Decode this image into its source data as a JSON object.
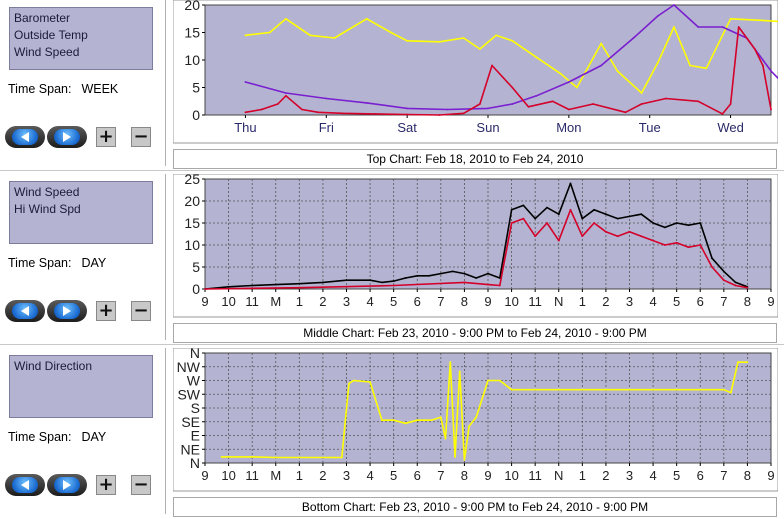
{
  "panels": [
    {
      "series": [
        "Barometer",
        "Outside Temp",
        "Wind Speed"
      ],
      "time_span_label": "Time Span:",
      "time_span_value": "WEEK",
      "buttons": {
        "back": "back",
        "forward": "forward",
        "plus": "+",
        "minus": "−"
      }
    },
    {
      "series": [
        "Wind Speed",
        "Hi Wind Spd"
      ],
      "time_span_label": "Time Span:",
      "time_span_value": "DAY",
      "buttons": {
        "back": "back",
        "forward": "forward",
        "plus": "+",
        "minus": "−"
      }
    },
    {
      "series": [
        "Wind Direction"
      ],
      "time_span_label": "Time Span:",
      "time_span_value": "DAY",
      "buttons": {
        "back": "back",
        "forward": "forward",
        "plus": "+",
        "minus": "−"
      }
    }
  ],
  "captions": {
    "top": "Top Chart:  Feb 18, 2010  to  Feb 24, 2010",
    "middle": "Middle Chart:  Feb 23, 2010 - 9:00 PM  to  Feb 24, 2010 - 9:00 PM",
    "bottom": "Bottom Chart:  Feb 23, 2010 - 9:00 PM  to  Feb 24, 2010 - 9:00 PM"
  },
  "icons": {
    "back": "left-arrow-icon",
    "forward": "right-arrow-icon"
  },
  "colors": {
    "plot_bg": "#b4b4d2",
    "yellow": "#ffff00",
    "purple": "#7a1fd0",
    "red": "#d4002a",
    "black": "#000000"
  },
  "chart_data": [
    {
      "type": "line",
      "y_ticks": [
        "0",
        "5",
        "10",
        "15",
        "20"
      ],
      "ylim": [
        0,
        20
      ],
      "categories": [
        "Thu",
        "Fri",
        "Sat",
        "Sun",
        "Mon",
        "Tue",
        "Wed"
      ],
      "grid": false,
      "series": [
        {
          "color": "#ffff00",
          "x": [
            0,
            0.3,
            0.5,
            0.8,
            1.1,
            1.5,
            1.8,
            2.0,
            2.4,
            2.7,
            2.9,
            3.1,
            3.3,
            3.6,
            3.9,
            4.1,
            4.4,
            4.6,
            4.9,
            5.1,
            5.3,
            5.5,
            5.7,
            6.0,
            6.4,
            6.6
          ],
          "values": [
            14.5,
            15,
            17.5,
            14.5,
            14,
            17.5,
            15,
            13.5,
            13.3,
            14,
            12,
            14.5,
            13.5,
            10.5,
            7.5,
            5,
            13,
            8,
            4,
            9.5,
            16,
            9,
            8.5,
            17.5,
            17.2,
            17
          ]
        },
        {
          "color": "#7a1fd0",
          "x": [
            0,
            0.5,
            1.0,
            1.5,
            2.0,
            2.5,
            3.0,
            3.3,
            3.6,
            4.0,
            4.4,
            4.8,
            5.1,
            5.3,
            5.6,
            5.9,
            6.2,
            6.5,
            6.6
          ],
          "values": [
            6,
            4,
            3,
            2.2,
            1.2,
            1,
            1.2,
            2,
            3.5,
            6,
            9,
            14,
            18,
            20,
            16,
            16,
            14,
            8,
            6.5
          ]
        },
        {
          "color": "#d4002a",
          "x": [
            0,
            0.2,
            0.4,
            0.5,
            0.7,
            0.9,
            1.2,
            1.6,
            2.0,
            2.4,
            2.7,
            2.9,
            3.05,
            3.3,
            3.5,
            3.8,
            4.0,
            4.3,
            4.7,
            4.9,
            5.2,
            5.6,
            5.9,
            6.0,
            6.1,
            6.3,
            6.4,
            6.5
          ],
          "values": [
            0.5,
            1,
            2,
            3.5,
            1,
            0.5,
            0.3,
            0.2,
            0.1,
            0,
            0.3,
            2,
            9,
            5,
            1.5,
            2.5,
            1,
            2,
            0.5,
            2,
            3,
            2.5,
            0.2,
            2,
            16,
            12,
            9,
            1
          ]
        }
      ]
    },
    {
      "type": "line",
      "y_ticks": [
        "0",
        "5",
        "10",
        "15",
        "20",
        "25"
      ],
      "ylim": [
        0,
        25
      ],
      "categories": [
        "9",
        "10",
        "11",
        "M",
        "1",
        "2",
        "3",
        "4",
        "5",
        "6",
        "7",
        "8",
        "9",
        "10",
        "11",
        "N",
        "1",
        "2",
        "3",
        "4",
        "5",
        "6",
        "7",
        "8",
        "9"
      ],
      "grid": true,
      "series": [
        {
          "color": "#000000",
          "x": [
            0,
            1,
            2,
            3,
            4,
            5,
            6,
            7,
            7.5,
            8,
            8.5,
            9,
            9.5,
            10,
            10.5,
            11,
            11.5,
            12,
            12.5,
            13,
            13.5,
            14,
            14.5,
            15,
            15.5,
            16,
            16.5,
            17,
            17.5,
            18,
            18.5,
            19,
            19.5,
            20,
            20.5,
            21,
            21.5,
            22,
            22.5,
            23
          ],
          "values": [
            0,
            0.5,
            0.8,
            1,
            1.2,
            1.5,
            2,
            2,
            1.5,
            1.8,
            2.5,
            3,
            3,
            3.5,
            4,
            3.5,
            2.5,
            3.5,
            2.5,
            18,
            19,
            16,
            18.5,
            17,
            24,
            16,
            18,
            17,
            16,
            16.5,
            17,
            15,
            14,
            15,
            14.5,
            15,
            7,
            4,
            1.5,
            0.5
          ]
        },
        {
          "color": "#d4002a",
          "x": [
            0,
            4,
            8,
            11,
            12,
            12.5,
            13,
            13.5,
            14,
            14.5,
            15,
            15.5,
            16,
            16.5,
            17,
            17.5,
            18,
            18.5,
            19,
            19.5,
            20,
            20.5,
            21,
            21.5,
            22,
            22.5,
            23
          ],
          "values": [
            0,
            0.3,
            0.8,
            1.5,
            1,
            0.8,
            15,
            16,
            12,
            15,
            11,
            18,
            12,
            15,
            13,
            12,
            13,
            12,
            11,
            10,
            10.5,
            9.5,
            10,
            5,
            2,
            0.8,
            0.3
          ]
        }
      ]
    },
    {
      "type": "line",
      "y_ticks": [
        "N",
        "NE",
        "E",
        "SE",
        "S",
        "SW",
        "W",
        "NW",
        "N"
      ],
      "ylim": [
        0,
        360
      ],
      "categories": [
        "9",
        "10",
        "11",
        "M",
        "1",
        "2",
        "3",
        "4",
        "5",
        "6",
        "7",
        "8",
        "9",
        "10",
        "11",
        "N",
        "1",
        "2",
        "3",
        "4",
        "5",
        "6",
        "7",
        "8",
        "9"
      ],
      "grid": true,
      "series": [
        {
          "color": "#ffff00",
          "x": [
            0.7,
            2,
            3,
            4,
            5.3,
            5.5,
            5.8,
            6.1,
            6.3,
            7,
            7.5,
            8,
            8.5,
            9,
            9.3,
            9.6,
            10,
            10.2,
            10.4,
            10.6,
            10.8,
            11,
            11.2,
            11.5,
            12,
            12.5,
            13,
            14,
            15,
            16,
            17,
            18,
            19,
            20,
            21,
            21.5,
            22,
            22.3,
            22.6,
            23
          ],
          "values": [
            20,
            20,
            18,
            18,
            18,
            18,
            18,
            260,
            270,
            265,
            140,
            140,
            130,
            140,
            140,
            140,
            150,
            80,
            330,
            20,
            300,
            10,
            120,
            150,
            270,
            270,
            240,
            240,
            240,
            240,
            240,
            240,
            240,
            240,
            240,
            240,
            240,
            230,
            330,
            330
          ]
        }
      ]
    }
  ]
}
